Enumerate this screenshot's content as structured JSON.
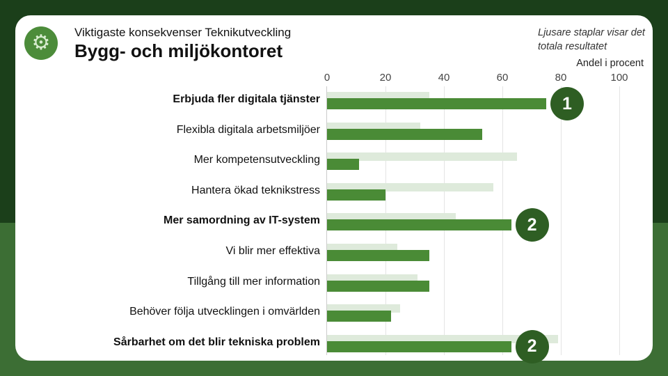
{
  "header": {
    "logo_icon": "gear-icon",
    "subtitle": "Viktigaste konsekvenser Teknikutveckling",
    "title": "Bygg- och miljökontoret",
    "note": "Ljusare staplar visar det totala resultatet"
  },
  "colors": {
    "bar": "#4a8b36",
    "total_bar": "#deeadb",
    "badge": "#2e5e23"
  },
  "chart_data": {
    "type": "bar",
    "orientation": "horizontal",
    "xlabel": "Andel i procent",
    "xlim": [
      0,
      100
    ],
    "xticks": [
      0,
      20,
      40,
      60,
      80,
      100
    ],
    "categories": [
      "Erbjuda fler digitala tjänster",
      "Flexibla digitala arbetsmiljöer",
      "Mer kompetensutveckling",
      "Hantera ökad teknikstress",
      "Mer samordning av IT-system",
      "Vi blir mer effektiva",
      "Tillgång till mer information",
      "Behöver följa utvecklingen i omvärlden",
      "Sårbarhet om det blir tekniska problem"
    ],
    "bold_categories": [
      "Erbjuda fler digitala tjänster",
      "Mer samordning av IT-system",
      "Sårbarhet om det blir tekniska problem"
    ],
    "series": [
      {
        "name": "Bygg- och miljökontoret",
        "values": [
          75,
          53,
          11,
          20,
          63,
          35,
          35,
          22,
          63
        ]
      },
      {
        "name": "Totala resultatet",
        "values": [
          35,
          32,
          65,
          57,
          44,
          24,
          31,
          25,
          79
        ]
      }
    ],
    "rank_badges": [
      {
        "category_index": 0,
        "label": "1"
      },
      {
        "category_index": 4,
        "label": "2"
      },
      {
        "category_index": 8,
        "label": "2"
      }
    ]
  }
}
